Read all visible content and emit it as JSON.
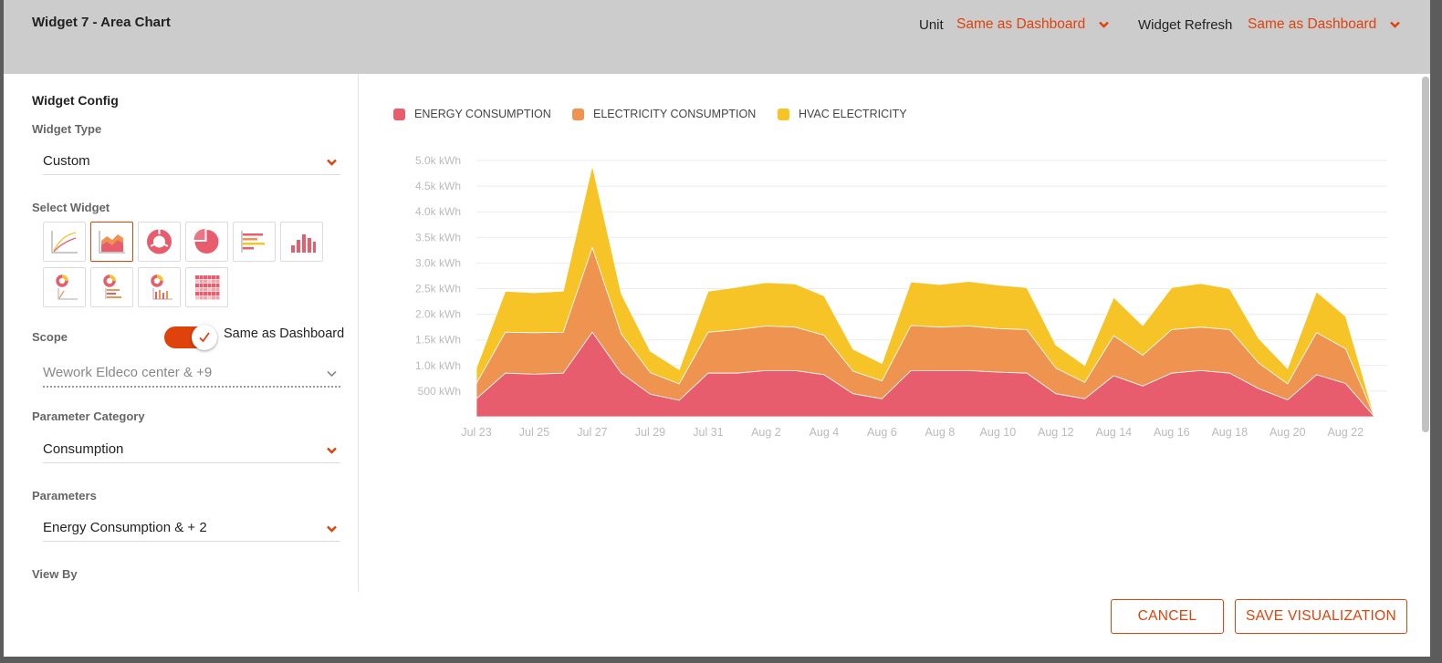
{
  "header": {
    "title": "Widget 7 - Area Chart",
    "unit_label": "Unit",
    "unit_value": "Same as Dashboard",
    "refresh_label": "Widget Refresh",
    "refresh_value": "Same as Dashboard"
  },
  "config": {
    "section_title": "Widget Config",
    "widget_type_label": "Widget Type",
    "widget_type_value": "Custom",
    "select_widget_label": "Select Widget",
    "widget_icons": [
      "line-chart-icon",
      "area-chart-icon",
      "donut-chart-icon",
      "pie-chart-icon",
      "horizontal-bar-chart-icon",
      "column-chart-icon",
      "donut-line-icon",
      "donut-bar-icon",
      "donut-column-icon",
      "heatmap-icon"
    ],
    "selected_widget": "area-chart-icon",
    "scope_label": "Scope",
    "scope_toggle_on": true,
    "scope_toggle_label": "Same as Dashboard",
    "scope_value": "Wework Eldeco center & +9",
    "parameter_category_label": "Parameter Category",
    "parameter_category_value": "Consumption",
    "parameters_label": "Parameters",
    "parameters_value": "Energy Consumption & + 2",
    "view_by_label": "View By"
  },
  "buttons": {
    "cancel": "CANCEL",
    "save": "SAVE VISUALIZATION"
  },
  "colors": {
    "accent": "#e0420b",
    "energy": "#e85d6e",
    "electricity": "#ef9350",
    "hvac": "#f6c427"
  },
  "chart_data": {
    "type": "area",
    "stacked": true,
    "x": [
      "Jul 23",
      "Jul 24",
      "Jul 25",
      "Jul 26",
      "Jul 27",
      "Jul 28",
      "Jul 29",
      "Jul 30",
      "Jul 31",
      "Aug 1",
      "Aug 2",
      "Aug 3",
      "Aug 4",
      "Aug 5",
      "Aug 6",
      "Aug 7",
      "Aug 8",
      "Aug 9",
      "Aug 10",
      "Aug 11",
      "Aug 12",
      "Aug 13",
      "Aug 14",
      "Aug 15",
      "Aug 16",
      "Aug 17",
      "Aug 18",
      "Aug 19",
      "Aug 20",
      "Aug 21",
      "Aug 22",
      "Aug 23"
    ],
    "xticks": [
      "Jul 23",
      "Jul 25",
      "Jul 27",
      "Jul 29",
      "Jul 31",
      "Aug 2",
      "Aug 4",
      "Aug 6",
      "Aug 8",
      "Aug 10",
      "Aug 12",
      "Aug 14",
      "Aug 16",
      "Aug 18",
      "Aug 20",
      "Aug 22"
    ],
    "yticks": [
      "500 kWh",
      "1.0k kWh",
      "1.5k kWh",
      "2.0k kWh",
      "2.5k kWh",
      "3.0k kWh",
      "3.5k kWh",
      "4.0k kWh",
      "4.5k kWh",
      "5.0k kWh"
    ],
    "ylim": [
      0,
      5000
    ],
    "legend_position": "top-left",
    "grid": true,
    "series": [
      {
        "name": "ENERGY CONSUMPTION",
        "color": "#e85d6e",
        "values": [
          350,
          850,
          830,
          850,
          1650,
          850,
          440,
          320,
          850,
          850,
          900,
          900,
          820,
          450,
          350,
          900,
          900,
          900,
          870,
          850,
          450,
          350,
          800,
          600,
          850,
          900,
          850,
          550,
          330,
          820,
          650,
          0
        ]
      },
      {
        "name": "ELECTRICITY CONSUMPTION",
        "color": "#ef9350",
        "values": [
          300,
          800,
          810,
          800,
          1650,
          770,
          420,
          320,
          800,
          850,
          870,
          850,
          770,
          440,
          350,
          880,
          850,
          870,
          850,
          850,
          500,
          320,
          780,
          600,
          850,
          850,
          850,
          500,
          310,
          820,
          680,
          0
        ]
      },
      {
        "name": "HVAC ELECTRICITY",
        "color": "#f6c427",
        "values": [
          300,
          800,
          780,
          800,
          1600,
          780,
          420,
          280,
          800,
          830,
          850,
          840,
          770,
          430,
          340,
          850,
          830,
          870,
          850,
          820,
          450,
          330,
          750,
          580,
          820,
          850,
          800,
          480,
          300,
          800,
          630,
          0
        ]
      }
    ]
  }
}
